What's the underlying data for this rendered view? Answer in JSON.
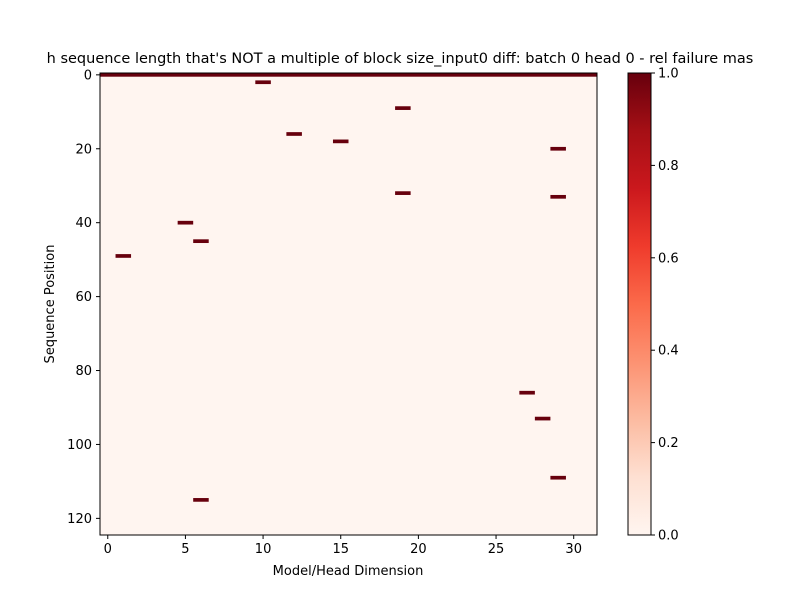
{
  "chart_data": {
    "type": "heatmap",
    "title": "h sequence length that's NOT a multiple of block size_input0 diff: batch 0 head 0 - rel failure mas",
    "xlabel": "Model/Head Dimension",
    "ylabel": "Sequence Position",
    "xlim": [
      -0.5,
      31.5
    ],
    "ylim": [
      124.5,
      -0.5
    ],
    "x_ticks": [
      0,
      5,
      10,
      15,
      20,
      25,
      30
    ],
    "y_ticks": [
      0,
      20,
      40,
      60,
      80,
      100,
      120
    ],
    "x_tick_labels": [
      "0",
      "5",
      "10",
      "15",
      "20",
      "25",
      "30"
    ],
    "y_tick_labels": [
      "0",
      "20",
      "40",
      "60",
      "80",
      "100",
      "120"
    ],
    "colormap": "Reds",
    "colorbar": {
      "min": 0.0,
      "max": 1.0,
      "ticks": [
        0.0,
        0.2,
        0.4,
        0.6,
        0.8,
        1.0
      ],
      "tick_labels": [
        "0.0",
        "0.2",
        "0.4",
        "0.6",
        "0.8",
        "1.0"
      ]
    },
    "background_value": 0.0,
    "full_rows": [
      0
    ],
    "cells": [
      {
        "x": 10,
        "y": 2,
        "value": 1
      },
      {
        "x": 19,
        "y": 9,
        "value": 1
      },
      {
        "x": 12,
        "y": 16,
        "value": 1
      },
      {
        "x": 15,
        "y": 18,
        "value": 1
      },
      {
        "x": 29,
        "y": 20,
        "value": 1
      },
      {
        "x": 19,
        "y": 32,
        "value": 1
      },
      {
        "x": 29,
        "y": 33,
        "value": 1
      },
      {
        "x": 5,
        "y": 40,
        "value": 1
      },
      {
        "x": 6,
        "y": 45,
        "value": 1
      },
      {
        "x": 1,
        "y": 49,
        "value": 1
      },
      {
        "x": 27,
        "y": 86,
        "value": 1
      },
      {
        "x": 28,
        "y": 93,
        "value": 1
      },
      {
        "x": 29,
        "y": 109,
        "value": 1
      },
      {
        "x": 6,
        "y": 115,
        "value": 1
      }
    ],
    "colors": {
      "low": "#fff5f0",
      "high": "#67000d"
    }
  }
}
